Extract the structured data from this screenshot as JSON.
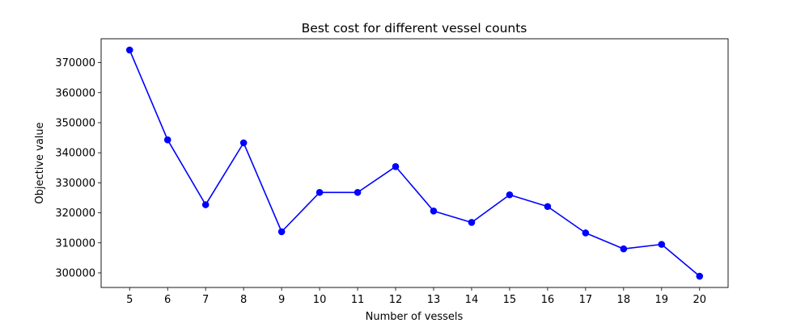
{
  "chart_data": {
    "type": "line",
    "title": "Best cost for different vessel counts",
    "xlabel": "Number of vessels",
    "ylabel": "Objective value",
    "x": [
      5,
      6,
      7,
      8,
      9,
      10,
      11,
      12,
      13,
      14,
      15,
      16,
      17,
      18,
      19,
      20
    ],
    "series": [
      {
        "values": [
          374200,
          344300,
          322700,
          343300,
          313700,
          326800,
          326800,
          335400,
          320600,
          316800,
          326000,
          322100,
          313300,
          308000,
          309500,
          298900
        ],
        "color": "#0000ff",
        "marker": "circle"
      }
    ],
    "xticks": [
      5,
      6,
      7,
      8,
      9,
      10,
      11,
      12,
      13,
      14,
      15,
      16,
      17,
      18,
      19,
      20
    ],
    "yticks": [
      300000,
      310000,
      320000,
      330000,
      340000,
      350000,
      360000,
      370000
    ],
    "xlim": [
      4.25,
      20.75
    ],
    "ylim": [
      295150,
      377950
    ],
    "grid": false,
    "legend": "none"
  }
}
